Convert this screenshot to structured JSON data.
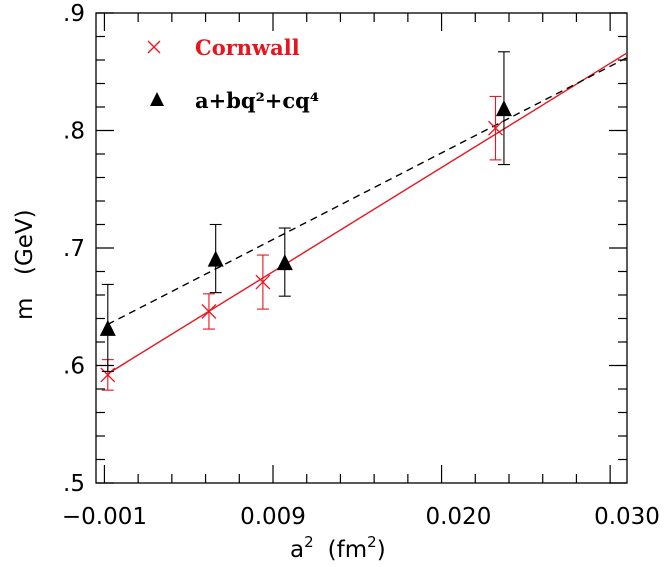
{
  "chart_data": {
    "type": "scatter",
    "title": "",
    "xlabel": "a² (fm²)",
    "xlabel_base": "a",
    "xlabel_unit": "fm",
    "ylabel": "m (GeV)",
    "ylabel_symbol": "m",
    "ylabel_unit": "(GeV)",
    "xlim": [
      -0.0015,
      0.03
    ],
    "ylim": [
      0.5,
      0.9
    ],
    "xticks": [
      -0.001,
      0.009,
      0.02,
      0.03
    ],
    "xtick_labels": [
      "−0.001",
      "0.009",
      "0.020",
      "0.030"
    ],
    "yticks": [
      0.5,
      0.6,
      0.7,
      0.8,
      0.9
    ],
    "ytick_labels": [
      ".5",
      ".6",
      ".7",
      ".8",
      ".9"
    ],
    "grid": false,
    "legend_position": "top-left",
    "series": [
      {
        "name": "Cornwall",
        "marker": "cross",
        "color": "#e8141e",
        "points": [
          {
            "x": -0.0008,
            "y": 0.592,
            "err": 0.013
          },
          {
            "x": 0.0052,
            "y": 0.646,
            "err": 0.015
          },
          {
            "x": 0.0084,
            "y": 0.671,
            "err": 0.023
          },
          {
            "x": 0.0222,
            "y": 0.802,
            "err": 0.027
          }
        ],
        "fit": {
          "style": "solid",
          "x": [
            -0.0008,
            0.03
          ],
          "y": [
            0.593,
            0.866
          ]
        }
      },
      {
        "name": "a+bq²+cq⁴",
        "marker": "triangle",
        "color": "#000000",
        "points": [
          {
            "x": -0.0008,
            "y": 0.632,
            "err": 0.037
          },
          {
            "x": 0.0056,
            "y": 0.691,
            "err": 0.029
          },
          {
            "x": 0.0097,
            "y": 0.688,
            "err": 0.029
          },
          {
            "x": 0.0227,
            "y": 0.819,
            "err": 0.048
          }
        ],
        "fit": {
          "style": "dashed",
          "x": [
            -0.0008,
            0.03
          ],
          "y": [
            0.635,
            0.862
          ]
        }
      }
    ]
  }
}
